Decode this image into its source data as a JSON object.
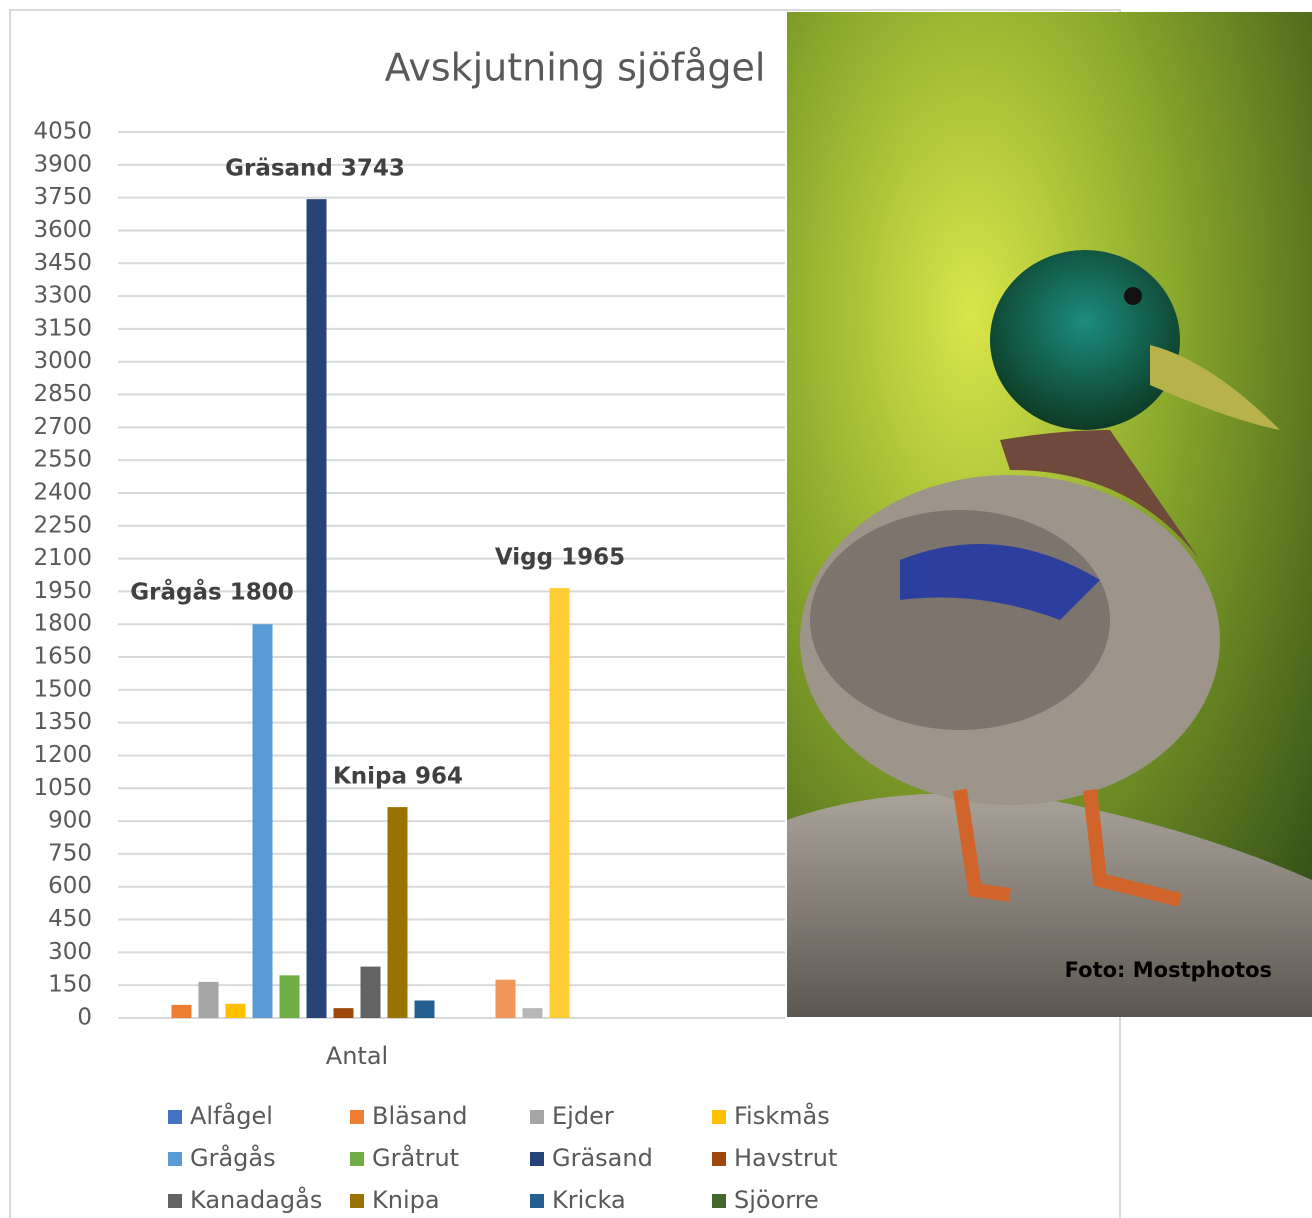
{
  "chart_data": {
    "type": "bar",
    "title": "Avskjutning sjöfågel",
    "categories": [
      "Antal"
    ],
    "series": [
      {
        "name": "Alfågel",
        "color": "#4472c4",
        "values": [
          0
        ]
      },
      {
        "name": "Bläsand",
        "color": "#ed7d31",
        "values": [
          60
        ]
      },
      {
        "name": "Ejder",
        "color": "#a5a5a5",
        "values": [
          165
        ]
      },
      {
        "name": "Fiskmås",
        "color": "#ffc000",
        "values": [
          65
        ]
      },
      {
        "name": "Grågås",
        "color": "#5b9bd5",
        "values": [
          1800
        ]
      },
      {
        "name": "Gråtrut",
        "color": "#70ad47",
        "values": [
          195
        ]
      },
      {
        "name": "Gräsand",
        "color": "#264478",
        "values": [
          3743
        ]
      },
      {
        "name": "Havstrut",
        "color": "#9e480e",
        "values": [
          45
        ]
      },
      {
        "name": "Kanadagås",
        "color": "#636363",
        "values": [
          235
        ]
      },
      {
        "name": "Knipa",
        "color": "#997300",
        "values": [
          964
        ]
      },
      {
        "name": "Kricka",
        "color": "#255e91",
        "values": [
          80
        ]
      },
      {
        "name": "Sjöorre",
        "color": "#43682b",
        "values": [
          0
        ]
      },
      {
        "name": null,
        "color": "#698ed0",
        "values": [
          0
        ]
      },
      {
        "name": null,
        "color": "#f1975a",
        "values": [
          175
        ]
      },
      {
        "name": null,
        "color": "#b7b7b7",
        "values": [
          45
        ]
      },
      {
        "name": null,
        "color": "#ffcd33",
        "values": [
          1965
        ]
      }
    ],
    "annotations": [
      "Grågås 1800",
      "Gräsand 3743",
      "Knipa 964",
      "Vigg 1965"
    ],
    "photo_credit": "Foto: Mostphotos",
    "ylim": [
      0,
      4050
    ],
    "yticks": [
      0,
      150,
      300,
      450,
      600,
      750,
      900,
      1050,
      1200,
      1350,
      1500,
      1650,
      1800,
      1950,
      2100,
      2250,
      2400,
      2550,
      2700,
      2850,
      3000,
      3150,
      3300,
      3450,
      3600,
      3750,
      3900,
      4050
    ],
    "grid": true
  }
}
